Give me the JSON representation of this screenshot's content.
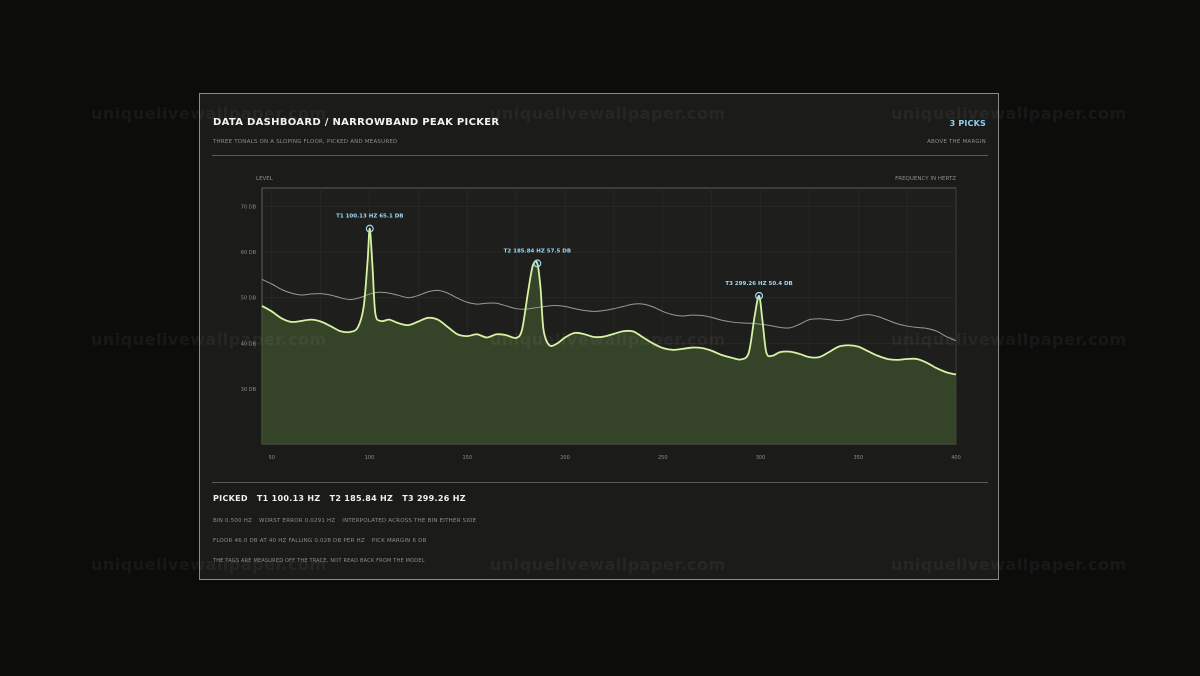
{
  "watermark": "uniquelivewallpaper.com",
  "header": {
    "title": "DATA DASHBOARD / NARROWBAND PEAK PICKER",
    "subtitle": "THREE TONALS ON A SLOPING FLOOR, PICKED AND MEASURED",
    "picks_count": "3 PICKS",
    "picks_note": "ABOVE THE MARGIN"
  },
  "colors": {
    "trace": "#d7f2a4",
    "fill": "#3a4a2c",
    "floor_trace": "#9a9a94",
    "marker": "#9fd8f7",
    "accent": "#8fd0f5"
  },
  "chart_data": {
    "type": "line",
    "ylabel": "LEVEL",
    "xlabel": "FREQUENCY IN HERTZ",
    "xlim": [
      45,
      400
    ],
    "ylim": [
      18,
      74
    ],
    "x_ticks": [
      "50",
      "100",
      "150",
      "200",
      "250",
      "300",
      "350",
      "400"
    ],
    "y_ticks": [
      "70 DB",
      "60 DB",
      "50 DB",
      "40 DB",
      "30 DB"
    ],
    "grid": true,
    "series": [
      {
        "role": "spectrum",
        "x": [
          45,
          50,
          55,
          60,
          65,
          70,
          75,
          80,
          85,
          90,
          94,
          97,
          99,
          100.13,
          101.5,
          103,
          106,
          110,
          115,
          120,
          125,
          130,
          135,
          140,
          145,
          150,
          155,
          160,
          165,
          170,
          175,
          178,
          181,
          183.5,
          185.84,
          187.5,
          189,
          192,
          196,
          200,
          205,
          210,
          215,
          220,
          225,
          230,
          235,
          240,
          245,
          250,
          255,
          260,
          265,
          270,
          275,
          280,
          285,
          290,
          294,
          297,
          299.26,
          301,
          303,
          306,
          310,
          315,
          320,
          325,
          330,
          335,
          340,
          345,
          350,
          355,
          360,
          365,
          370,
          375,
          380,
          385,
          390,
          395,
          400
        ],
        "y": [
          48.2,
          47.0,
          45.5,
          44.7,
          44.9,
          45.2,
          44.8,
          43.8,
          42.7,
          42.5,
          43.5,
          48.0,
          58.0,
          65.1,
          57.0,
          46.5,
          44.9,
          45.2,
          44.4,
          44.0,
          44.8,
          45.6,
          45.2,
          43.6,
          42.0,
          41.6,
          42.0,
          41.3,
          42.0,
          41.8,
          41.2,
          43.0,
          51.0,
          57.0,
          57.5,
          52.0,
          43.0,
          39.6,
          40.0,
          41.3,
          42.3,
          42.0,
          41.4,
          41.5,
          42.1,
          42.7,
          42.6,
          41.3,
          40.0,
          39.0,
          38.6,
          38.8,
          39.1,
          39.0,
          38.4,
          37.5,
          36.9,
          36.5,
          38.0,
          46.0,
          50.4,
          45.0,
          38.0,
          37.3,
          38.1,
          38.2,
          37.7,
          37.0,
          37.0,
          38.1,
          39.3,
          39.6,
          39.3,
          38.3,
          37.3,
          36.6,
          36.4,
          36.6,
          36.6,
          35.8,
          34.6,
          33.7,
          33.2
        ]
      },
      {
        "role": "floor",
        "x": [
          45,
          50,
          55,
          60,
          65,
          70,
          75,
          80,
          85,
          90,
          95,
          100,
          105,
          110,
          115,
          120,
          125,
          130,
          135,
          140,
          145,
          150,
          155,
          160,
          165,
          170,
          175,
          180,
          185,
          190,
          195,
          200,
          205,
          210,
          215,
          220,
          225,
          230,
          235,
          240,
          245,
          250,
          255,
          260,
          265,
          270,
          275,
          280,
          285,
          290,
          295,
          300,
          305,
          310,
          315,
          320,
          325,
          330,
          335,
          340,
          345,
          350,
          355,
          360,
          365,
          370,
          375,
          380,
          385,
          390,
          395,
          400
        ],
        "y": [
          54.0,
          53.0,
          51.8,
          51.0,
          50.6,
          50.8,
          50.9,
          50.6,
          50.0,
          49.6,
          50.0,
          50.8,
          51.2,
          51.0,
          50.5,
          50.0,
          50.5,
          51.3,
          51.6,
          51.0,
          49.9,
          49.0,
          48.6,
          48.8,
          48.8,
          48.2,
          47.6,
          47.5,
          47.8,
          48.1,
          48.3,
          48.1,
          47.6,
          47.2,
          47.0,
          47.2,
          47.6,
          48.1,
          48.6,
          48.6,
          48.0,
          47.0,
          46.3,
          46.0,
          46.2,
          46.1,
          45.7,
          45.1,
          44.7,
          44.5,
          44.4,
          44.2,
          43.9,
          43.5,
          43.4,
          44.2,
          45.2,
          45.4,
          45.2,
          45.0,
          45.3,
          46.0,
          46.3,
          45.9,
          45.1,
          44.3,
          43.8,
          43.5,
          43.3,
          42.7,
          41.5,
          40.6
        ]
      }
    ],
    "picks": [
      {
        "id": "T1",
        "x": 100.13,
        "y": 65.1,
        "label": "T1  100.13 HZ  65.1 DB"
      },
      {
        "id": "T2",
        "x": 185.84,
        "y": 57.5,
        "label": "T2  185.84 HZ  57.5 DB"
      },
      {
        "id": "T3",
        "x": 299.26,
        "y": 50.4,
        "label": "T3  299.26 HZ  50.4 DB"
      }
    ]
  },
  "summary": {
    "picked_label": "PICKED",
    "picked_values": [
      "T1 100.13 HZ",
      "T2 185.84 HZ",
      "T3 299.26 HZ"
    ],
    "bin_line": [
      "BIN 0.500 HZ",
      "WORST ERROR 0.0291 HZ",
      "INTERPOLATED ACROSS THE BIN EITHER SIDE"
    ],
    "floor_line": [
      "FLOOR 46.0 DB AT 40 HZ FALLING 0.028 DB PER HZ",
      "PICK MARGIN 6 DB"
    ],
    "note": "THE TAGS ARE MEASURED OFF THE TRACE, NOT READ BACK FROM THE MODEL"
  }
}
